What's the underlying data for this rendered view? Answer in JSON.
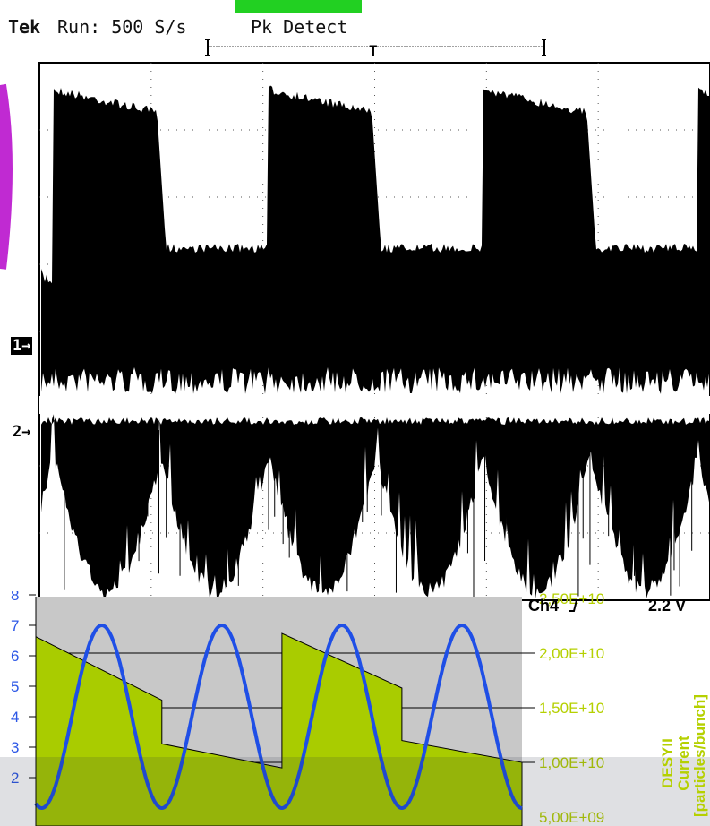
{
  "oscilloscope": {
    "brand": "Tek",
    "run_status": "Run: 500 S/s",
    "acquisition_mode": "Pk Detect",
    "channel1_marker": "1→",
    "channel2_marker": "2→",
    "trigger_marker": "T",
    "trigger_channel": "Ch4",
    "trigger_slope_icon": "rising-edge-icon",
    "trigger_level": "2.2 V"
  },
  "colors": {
    "trace": "#000000",
    "bunch_fill": "#a9cc00",
    "bunch_axis": "#b5d000",
    "sine": "#1f4fe6",
    "background_panel": "#c8c8c8"
  },
  "chart_data": [
    {
      "type": "area",
      "x": [
        0,
        1.05,
        1.05,
        2.05,
        2.05,
        3.05,
        3.05,
        4.05
      ],
      "values": [
        21500000000.0,
        15700000000.0,
        11700000000.0,
        9500000000.0,
        21800000000.0,
        16800000000.0,
        12000000000.0,
        10000000000.0
      ],
      "right_axis": {
        "title_line1": "DESYII Current",
        "title_line2": "[particles/bunch]",
        "ticks": [
          "5,00E+09",
          "1,00E+10",
          "1,50E+10",
          "2,00E+10",
          "2,50E+10"
        ],
        "ylim": [
          5000000000.0,
          25000000000.0
        ]
      },
      "grid": true
    },
    {
      "type": "line",
      "x": [
        0,
        4.05
      ],
      "peaks_x": [
        0.55,
        1.55,
        2.55,
        3.55
      ],
      "amplitude": 6,
      "offset": 1,
      "left_axis": {
        "ticks": [
          "2",
          "3",
          "4",
          "5",
          "6",
          "7",
          "8"
        ],
        "ylim": [
          1.5,
          8
        ]
      }
    }
  ]
}
